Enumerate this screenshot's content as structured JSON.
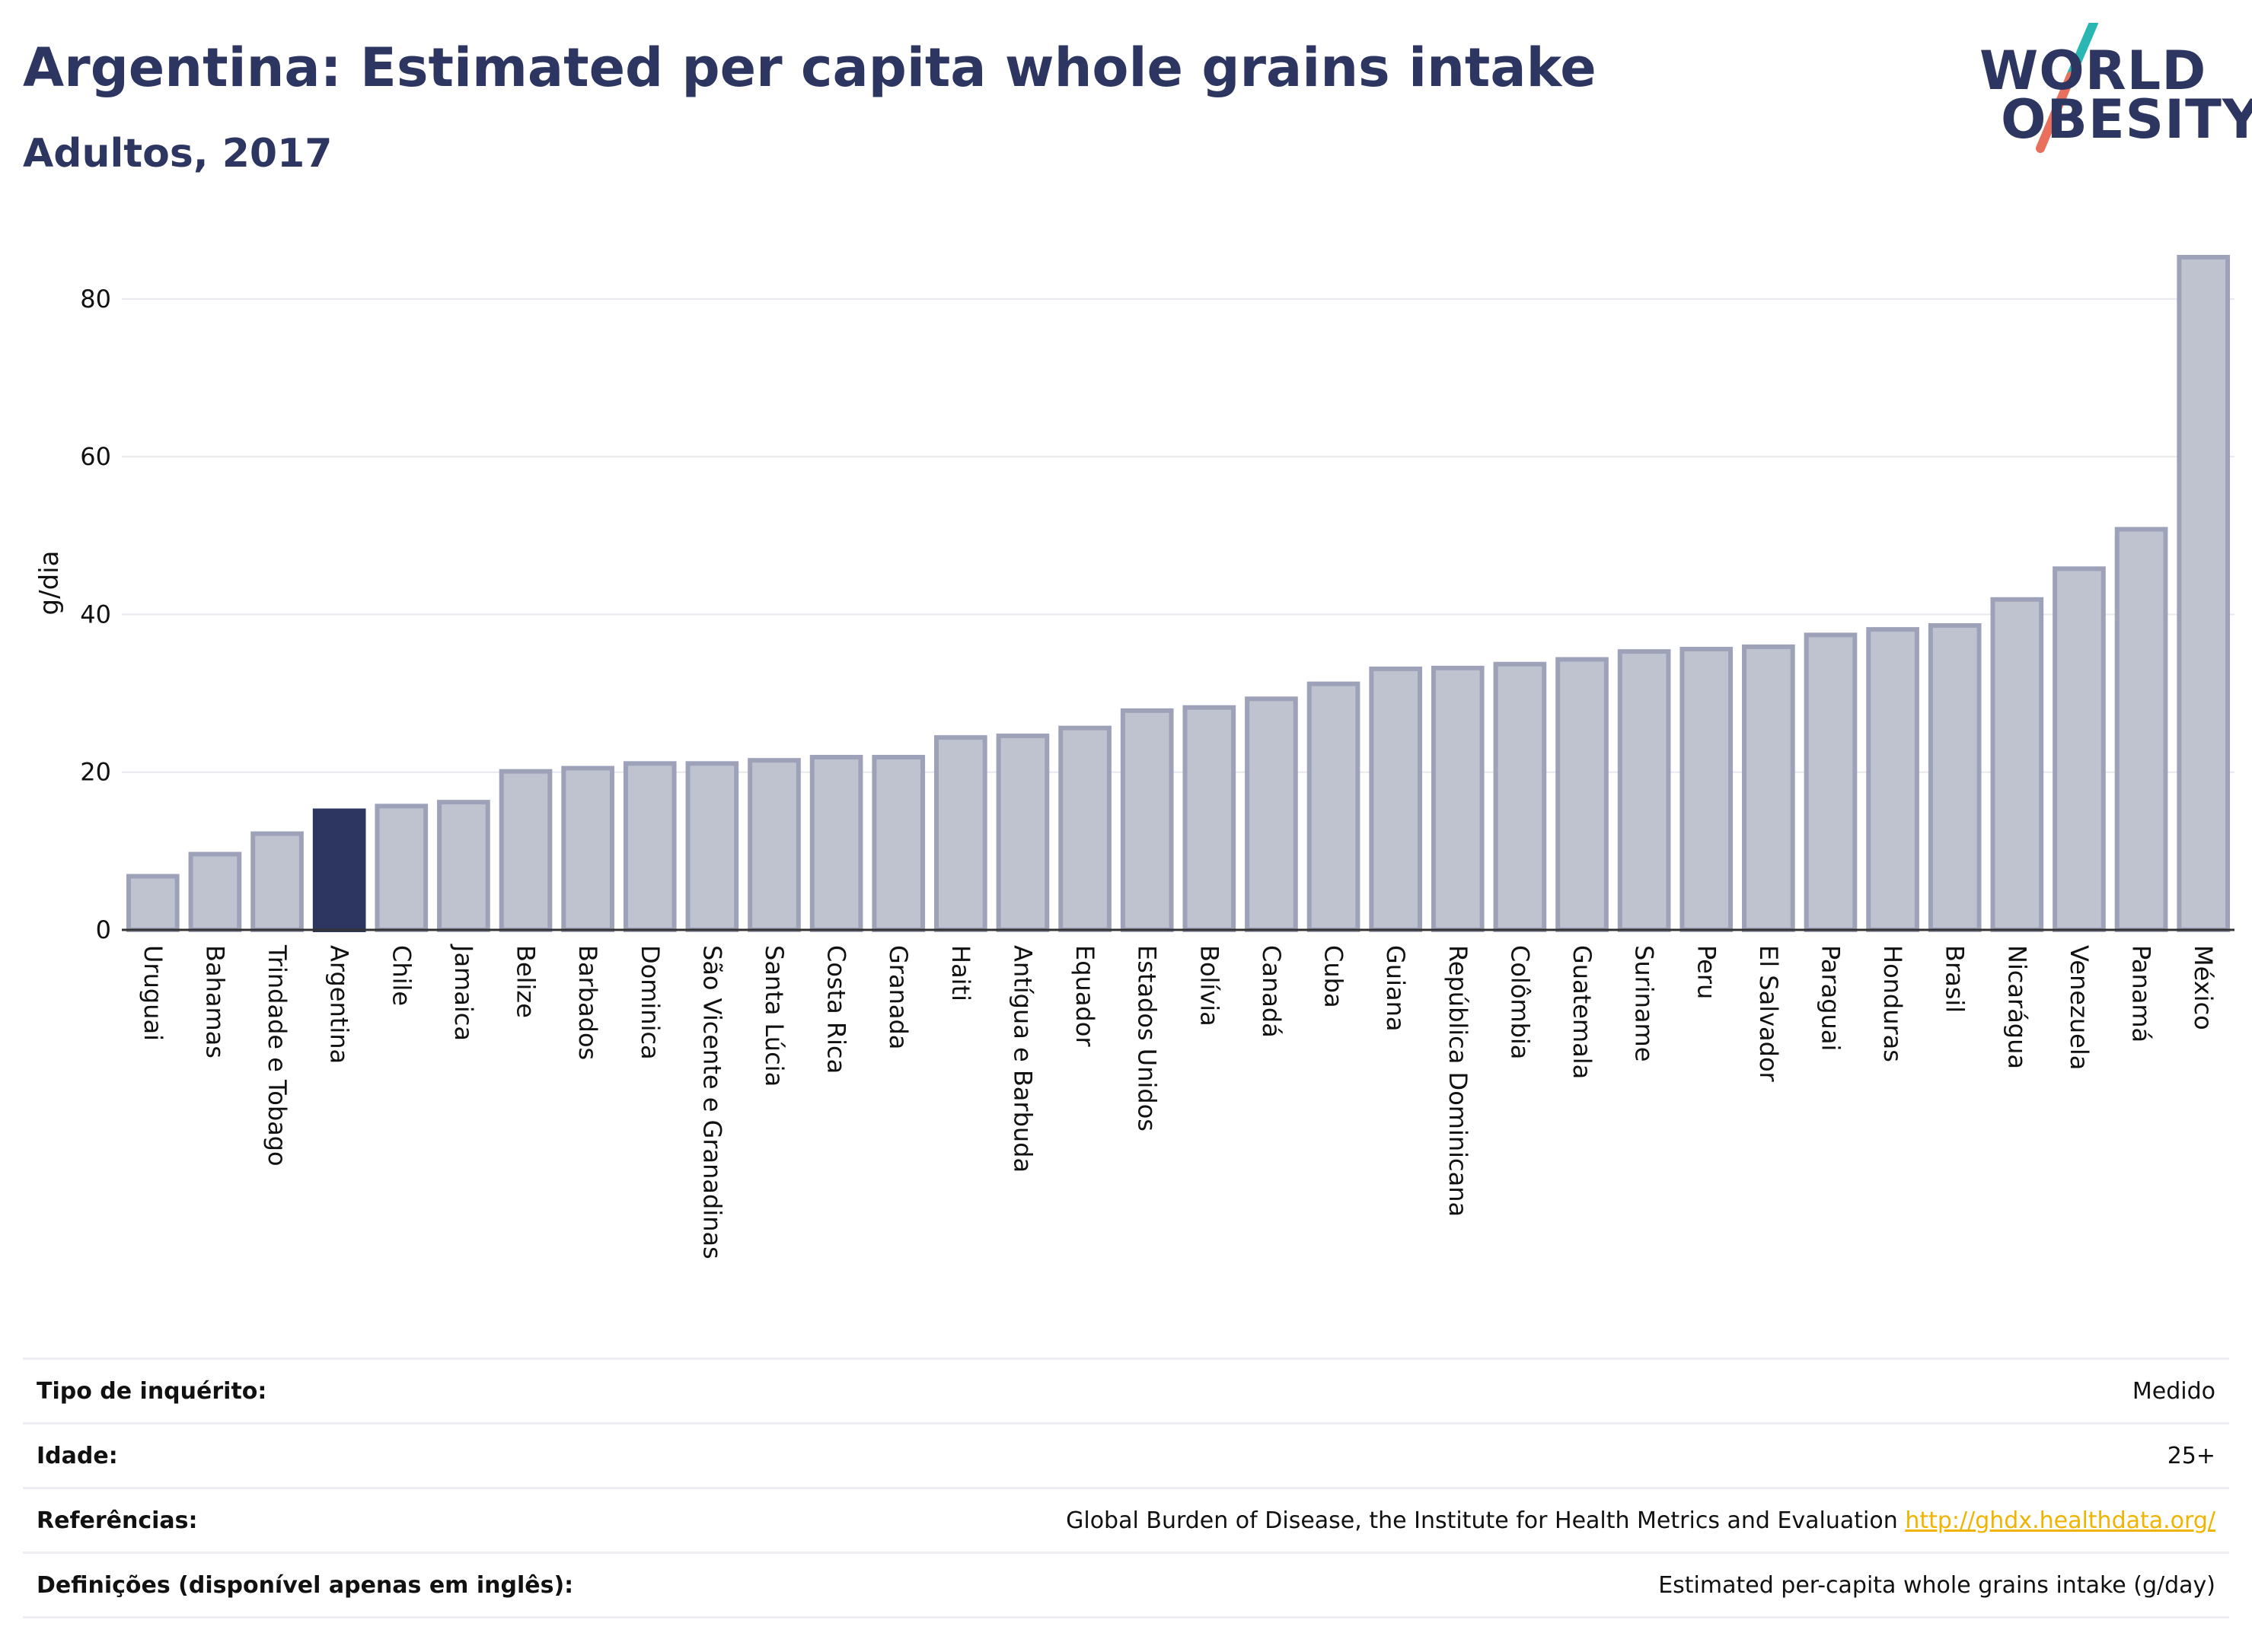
{
  "header": {
    "title": "Argentina: Estimated per capita whole grains intake",
    "subtitle": "Adultos, 2017"
  },
  "logo": {
    "line1": "WORLD",
    "line2": "OBESITY",
    "slash_colors": [
      "#2ab7b3",
      "#e8705c"
    ]
  },
  "colors": {
    "highlight": "#2d3561",
    "bar_fill": "#bfc3d0",
    "bar_stroke": "#9da2b8",
    "grid": "#e6e8ee"
  },
  "chart_data": {
    "type": "bar",
    "ylabel": "g/dia",
    "ylim": [
      0,
      88
    ],
    "yticks": [
      0,
      20,
      40,
      60,
      80
    ],
    "highlight": "Argentina",
    "categories": [
      "Uruguai",
      "Bahamas",
      "Trindade e Tobago",
      "Argentina",
      "Chile",
      "Jamaica",
      "Belize",
      "Barbados",
      "Dominica",
      "São Vicente e Granadinas",
      "Santa Lúcia",
      "Costa Rica",
      "Granada",
      "Haiti",
      "Antígua e Barbuda",
      "Equador",
      "Estados Unidos",
      "Bolívia",
      "Canadá",
      "Cuba",
      "Guiana",
      "República Dominicana",
      "Colômbia",
      "Guatemala",
      "Suriname",
      "Peru",
      "El Salvador",
      "Paraguai",
      "Honduras",
      "Brasil",
      "Nicarágua",
      "Venezuela",
      "Panamá",
      "México"
    ],
    "values": [
      6.8,
      9.6,
      12.2,
      15.1,
      15.7,
      16.2,
      20.1,
      20.5,
      21.1,
      21.1,
      21.5,
      21.9,
      21.9,
      24.4,
      24.6,
      25.6,
      27.8,
      28.2,
      29.3,
      31.2,
      33.1,
      33.2,
      33.7,
      34.3,
      35.3,
      35.6,
      35.9,
      37.4,
      38.1,
      38.6,
      41.9,
      45.8,
      50.8,
      85.3
    ]
  },
  "footer": {
    "rows": [
      {
        "label": "Tipo de inquérito:",
        "value": "Medido"
      },
      {
        "label": "Idade:",
        "value": "25+"
      },
      {
        "label": "Referências:",
        "value": "Global Burden of Disease, the Institute for Health Metrics and Evaluation",
        "link": "http://ghdx.healthdata.org/"
      },
      {
        "label": "Definições (disponível apenas em inglês):",
        "value": "Estimated per-capita whole grains intake (g/day)"
      }
    ]
  }
}
